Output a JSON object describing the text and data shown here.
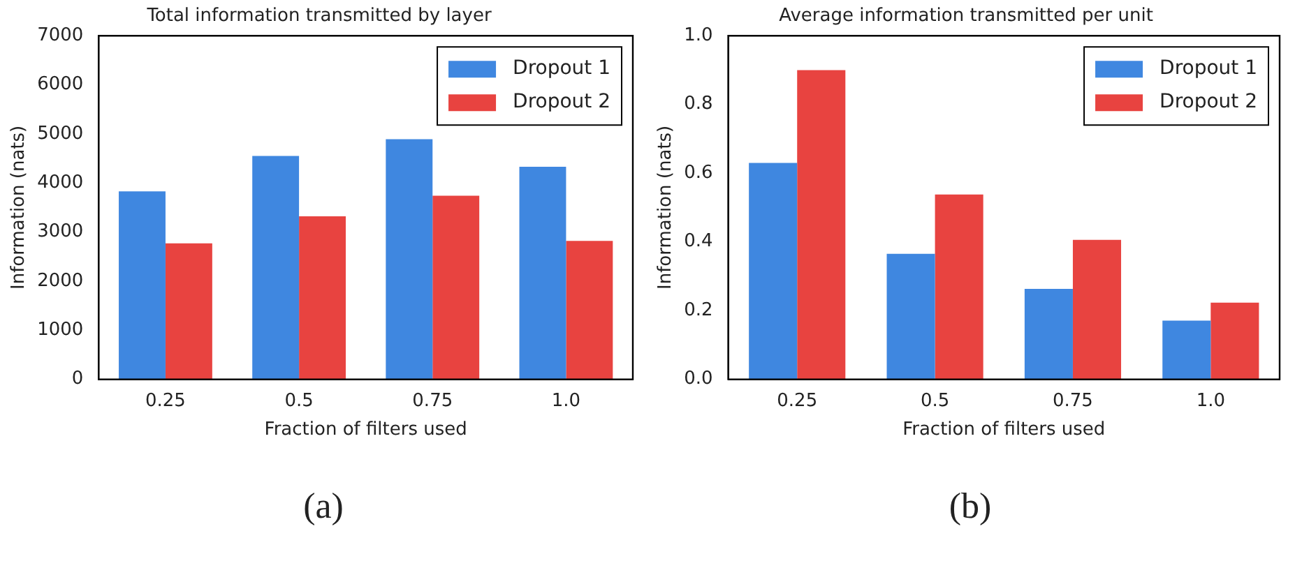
{
  "chart_data": [
    {
      "type": "bar",
      "title": "Total information transmitted by layer",
      "xlabel": "Fraction of filters used",
      "ylabel": "Information (nats)",
      "categories": [
        "0.25",
        "0.5",
        "0.75",
        "1.0"
      ],
      "series": [
        {
          "name": "Dropout 1",
          "color": "#3f87e0",
          "values": [
            3830,
            4550,
            4890,
            4330
          ]
        },
        {
          "name": "Dropout 2",
          "color": "#e84340",
          "values": [
            2770,
            3320,
            3740,
            2820
          ]
        }
      ],
      "ylim": [
        0,
        7000
      ],
      "yticks": [
        0,
        1000,
        2000,
        3000,
        4000,
        5000,
        6000,
        7000
      ],
      "legend": "top right",
      "grid": false,
      "annotations": [
        "(a)"
      ]
    },
    {
      "type": "bar",
      "title": "Average information transmitted per unit",
      "xlabel": "Fraction of filters used",
      "ylabel": "Information (nats)",
      "categories": [
        "0.25",
        "0.5",
        "0.75",
        "1.0"
      ],
      "series": [
        {
          "name": "Dropout 1",
          "color": "#3f87e0",
          "values": [
            0.63,
            0.365,
            0.263,
            0.171
          ]
        },
        {
          "name": "Dropout 2",
          "color": "#e84340",
          "values": [
            0.9,
            0.538,
            0.406,
            0.223
          ]
        }
      ],
      "ylim": [
        0,
        1.0
      ],
      "yticks": [
        {
          "value": 0,
          "label": "0.0"
        },
        0.2,
        0.4,
        0.6,
        0.8,
        {
          "value": 1,
          "label": "1.0"
        }
      ],
      "legend": "top right",
      "grid": false,
      "annotations": [
        "(b)"
      ]
    }
  ]
}
